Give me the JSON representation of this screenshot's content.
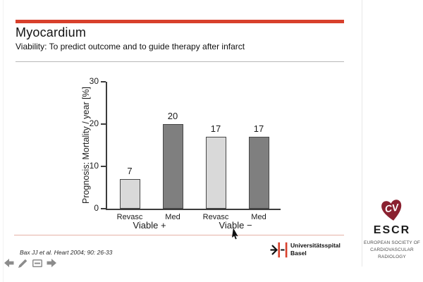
{
  "slide": {
    "title": "Myocardium",
    "subtitle": "Viability: To predict outcome and to guide therapy after infarct",
    "citation": "Bax JJ et al. Heart 2004; 90: 26-33",
    "accent_color": "#d8402c"
  },
  "chart_data": {
    "type": "bar",
    "title": "",
    "ylabel": "Prognosis: Mortality / year [%]",
    "xlabel": "",
    "ylim": [
      0,
      30
    ],
    "yticks": [
      0,
      10,
      20,
      30
    ],
    "categories": [
      "Revasc",
      "Med",
      "Revasc",
      "Med"
    ],
    "values": [
      7,
      20,
      17,
      17
    ],
    "value_labels": [
      "7",
      "20",
      "17",
      "17"
    ],
    "groups": [
      "Viable +",
      "Viable −"
    ],
    "group_membership": [
      [
        0,
        1
      ],
      [
        2,
        3
      ]
    ],
    "bar_colors": [
      "#d9d9d9",
      "#7f7f7f",
      "#d9d9d9",
      "#7f7f7f"
    ],
    "series": [
      {
        "name": "Revasc",
        "color": "#d9d9d9",
        "values": [
          7,
          17
        ]
      },
      {
        "name": "Med",
        "color": "#7f7f7f",
        "values": [
          20,
          17
        ]
      }
    ],
    "grid": false,
    "legend": "none"
  },
  "controls": {
    "icons": [
      "previous-arrow-icon",
      "pen-icon",
      "slide-menu-icon",
      "next-arrow-icon"
    ]
  },
  "logos": {
    "usb": {
      "name_line1": "Universitätsspital",
      "name_line2": "Basel",
      "red": "#d8402c"
    },
    "escr": {
      "heart_letters": "CV",
      "heart_color": "#8a2130",
      "acronym": "ESCR",
      "tagline": [
        "EUROPEAN SOCIETY OF",
        "CARDIOVASCULAR",
        "RADIOLOGY"
      ]
    }
  }
}
